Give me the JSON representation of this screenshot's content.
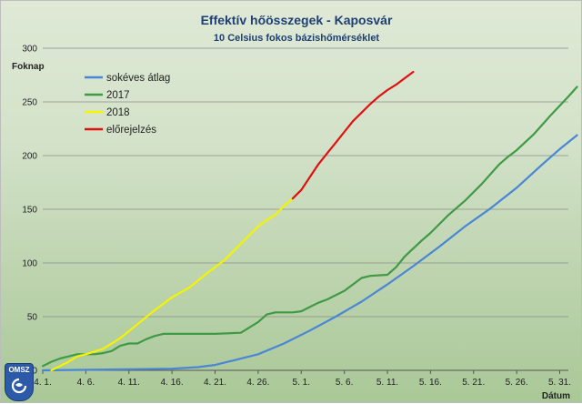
{
  "chart_data": {
    "type": "line",
    "title": "Effektív hőösszegek - Kaposvár",
    "subtitle": "10 Celsius fokos bázishőmérséklet",
    "ylabel": "Foknap",
    "xlabel": "Dátum",
    "ylim": [
      0,
      300
    ],
    "yticks": [
      0,
      50,
      100,
      150,
      200,
      250,
      300
    ],
    "xlim": [
      "2018-04-01",
      "2018-06-01"
    ],
    "xticks": [
      "4. 1.",
      "4. 6.",
      "4. 11.",
      "4. 16.",
      "4. 21.",
      "4. 26.",
      "5. 1.",
      "5. 6.",
      "5. 11.",
      "5. 16.",
      "5. 21.",
      "5. 26.",
      "5. 31."
    ],
    "grid": true,
    "legend_position": "top-left",
    "series": [
      {
        "name": "sokéves átlag",
        "color": "#4a86d6",
        "points": [
          [
            "2018-04-01",
            0
          ],
          [
            "2018-04-11",
            1
          ],
          [
            "2018-04-16",
            1.5
          ],
          [
            "2018-04-19",
            3
          ],
          [
            "2018-04-21",
            5
          ],
          [
            "2018-04-23",
            9
          ],
          [
            "2018-04-26",
            15
          ],
          [
            "2018-04-29",
            25
          ],
          [
            "2018-05-02",
            37
          ],
          [
            "2018-05-05",
            50
          ],
          [
            "2018-05-08",
            64
          ],
          [
            "2018-05-11",
            80
          ],
          [
            "2018-05-14",
            97
          ],
          [
            "2018-05-17",
            115
          ],
          [
            "2018-05-20",
            134
          ],
          [
            "2018-05-23",
            151
          ],
          [
            "2018-05-26",
            170
          ],
          [
            "2018-05-29",
            192
          ],
          [
            "2018-05-31",
            206
          ],
          [
            "2018-06-02",
            219
          ]
        ]
      },
      {
        "name": "2017",
        "color": "#3f9a45",
        "points": [
          [
            "2018-04-01",
            4
          ],
          [
            "2018-04-02",
            8
          ],
          [
            "2018-04-03",
            11
          ],
          [
            "2018-04-04",
            13
          ],
          [
            "2018-04-05",
            15
          ],
          [
            "2018-04-07",
            15
          ],
          [
            "2018-04-08",
            16
          ],
          [
            "2018-04-09",
            18
          ],
          [
            "2018-04-10",
            23
          ],
          [
            "2018-04-11",
            25
          ],
          [
            "2018-04-12",
            25
          ],
          [
            "2018-04-13",
            29
          ],
          [
            "2018-04-14",
            32
          ],
          [
            "2018-04-15",
            34
          ],
          [
            "2018-04-21",
            34
          ],
          [
            "2018-04-24",
            35
          ],
          [
            "2018-04-26",
            45
          ],
          [
            "2018-04-27",
            52
          ],
          [
            "2018-04-28",
            54
          ],
          [
            "2018-04-30",
            54
          ],
          [
            "2018-05-01",
            55
          ],
          [
            "2018-05-02",
            59
          ],
          [
            "2018-05-03",
            63
          ],
          [
            "2018-05-04",
            66
          ],
          [
            "2018-05-05",
            70
          ],
          [
            "2018-05-06",
            74
          ],
          [
            "2018-05-07",
            80
          ],
          [
            "2018-05-08",
            86
          ],
          [
            "2018-05-09",
            88
          ],
          [
            "2018-05-11",
            89
          ],
          [
            "2018-05-12",
            96
          ],
          [
            "2018-05-13",
            106
          ],
          [
            "2018-05-15",
            121
          ],
          [
            "2018-05-16",
            128
          ],
          [
            "2018-05-18",
            144
          ],
          [
            "2018-05-20",
            158
          ],
          [
            "2018-05-22",
            174
          ],
          [
            "2018-05-24",
            192
          ],
          [
            "2018-05-25",
            199
          ],
          [
            "2018-05-26",
            205
          ],
          [
            "2018-05-28",
            220
          ],
          [
            "2018-05-30",
            238
          ],
          [
            "2018-06-01",
            255
          ],
          [
            "2018-06-02",
            264
          ]
        ]
      },
      {
        "name": "2018",
        "color": "#f4f400",
        "points": [
          [
            "2018-04-02",
            0
          ],
          [
            "2018-04-03",
            4
          ],
          [
            "2018-04-04",
            8
          ],
          [
            "2018-04-05",
            13
          ],
          [
            "2018-04-06",
            15
          ],
          [
            "2018-04-08",
            20
          ],
          [
            "2018-04-10",
            30
          ],
          [
            "2018-04-12",
            43
          ],
          [
            "2018-04-14",
            56
          ],
          [
            "2018-04-16",
            68
          ],
          [
            "2018-04-18",
            77
          ],
          [
            "2018-04-20",
            90
          ],
          [
            "2018-04-22",
            102
          ],
          [
            "2018-04-24",
            118
          ],
          [
            "2018-04-26",
            134
          ],
          [
            "2018-04-27",
            140
          ],
          [
            "2018-04-28",
            145
          ],
          [
            "2018-04-29",
            153
          ],
          [
            "2018-04-30",
            160
          ]
        ]
      },
      {
        "name": "előrejelzés",
        "color": "#e01010",
        "points": [
          [
            "2018-04-30",
            160
          ],
          [
            "2018-05-01",
            168
          ],
          [
            "2018-05-02",
            180
          ],
          [
            "2018-05-03",
            192
          ],
          [
            "2018-05-04",
            202
          ],
          [
            "2018-05-05",
            212
          ],
          [
            "2018-05-06",
            222
          ],
          [
            "2018-05-07",
            232
          ],
          [
            "2018-05-08",
            240
          ],
          [
            "2018-05-09",
            248
          ],
          [
            "2018-05-10",
            255
          ],
          [
            "2018-05-11",
            261
          ],
          [
            "2018-05-12",
            266
          ],
          [
            "2018-05-13",
            272
          ],
          [
            "2018-05-14",
            278
          ]
        ]
      }
    ]
  },
  "logo": {
    "text": "OMSZ",
    "icon": "omsz-logo-icon"
  }
}
